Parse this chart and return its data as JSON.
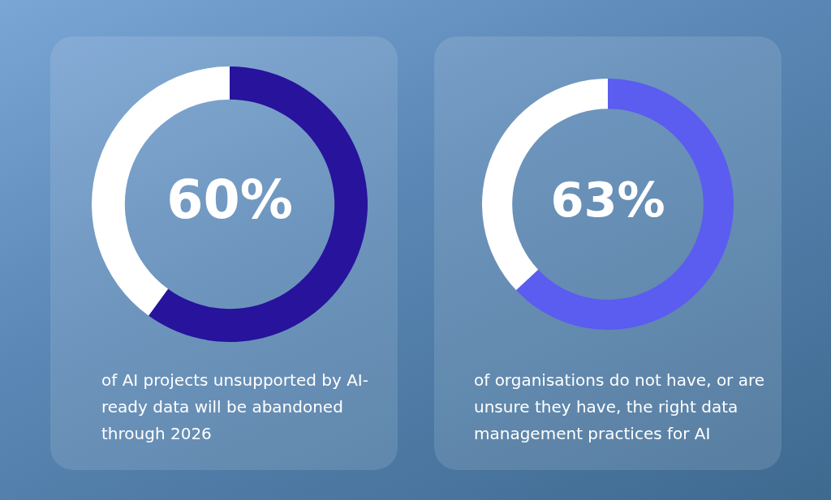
{
  "chart_data": [
    {
      "type": "donut",
      "categories": [
        null,
        null
      ],
      "values": [
        60,
        40
      ],
      "colors": [
        "#27139c",
        "#ffffff"
      ],
      "value_labels": [
        "60%",
        null
      ],
      "annotations": [
        "of AI projects unsupported by AI-ready data will be abandoned through 2026"
      ]
    },
    {
      "type": "donut",
      "categories": [
        null,
        null
      ],
      "values": [
        63,
        37
      ],
      "colors": [
        "#5b5cf0",
        "#ffffff"
      ],
      "value_labels": [
        "63%",
        null
      ],
      "annotations": [
        "of organisations do not have, or are unsure they have, the right data management practices for AI"
      ]
    }
  ]
}
